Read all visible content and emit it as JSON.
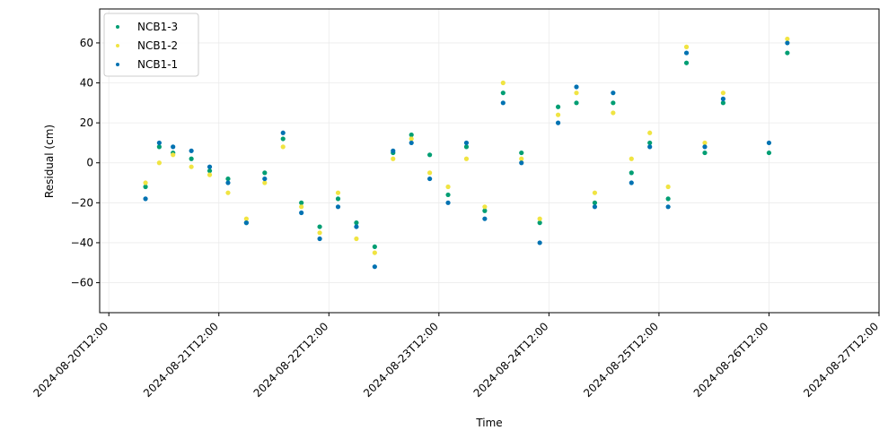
{
  "chart_data": {
    "type": "scatter",
    "title": "",
    "xlabel": "Time",
    "ylabel": "Residual (cm)",
    "x_range": [
      "2024-08-20T10:00",
      "2024-08-27T12:00"
    ],
    "ylim": [
      -75,
      77
    ],
    "x_ticks": [
      "2024-08-20T12:00",
      "2024-08-21T12:00",
      "2024-08-22T12:00",
      "2024-08-23T12:00",
      "2024-08-24T12:00",
      "2024-08-25T12:00",
      "2024-08-26T12:00",
      "2024-08-27T12:00"
    ],
    "y_ticks": [
      -60,
      -40,
      -20,
      0,
      20,
      40,
      60
    ],
    "grid": true,
    "legend_position": "top-left",
    "series": [
      {
        "name": "NCB1-3",
        "color": "#009E73",
        "points": [
          [
            "2024-08-20T20:00",
            -12
          ],
          [
            "2024-08-20T23:00",
            8
          ],
          [
            "2024-08-21T02:00",
            5
          ],
          [
            "2024-08-21T06:00",
            2
          ],
          [
            "2024-08-21T10:00",
            -4
          ],
          [
            "2024-08-21T14:00",
            -8
          ],
          [
            "2024-08-21T18:00",
            -30
          ],
          [
            "2024-08-21T22:00",
            -5
          ],
          [
            "2024-08-22T02:00",
            12
          ],
          [
            "2024-08-22T06:00",
            -20
          ],
          [
            "2024-08-22T10:00",
            -32
          ],
          [
            "2024-08-22T14:00",
            -18
          ],
          [
            "2024-08-22T18:00",
            -30
          ],
          [
            "2024-08-22T22:00",
            -42
          ],
          [
            "2024-08-23T02:00",
            5
          ],
          [
            "2024-08-23T06:00",
            14
          ],
          [
            "2024-08-23T10:00",
            4
          ],
          [
            "2024-08-23T14:00",
            -16
          ],
          [
            "2024-08-23T18:00",
            8
          ],
          [
            "2024-08-23T22:00",
            -24
          ],
          [
            "2024-08-24T02:00",
            35
          ],
          [
            "2024-08-24T06:00",
            5
          ],
          [
            "2024-08-24T10:00",
            -30
          ],
          [
            "2024-08-24T14:00",
            28
          ],
          [
            "2024-08-24T18:00",
            30
          ],
          [
            "2024-08-24T22:00",
            -20
          ],
          [
            "2024-08-25T02:00",
            30
          ],
          [
            "2024-08-25T06:00",
            -5
          ],
          [
            "2024-08-25T10:00",
            10
          ],
          [
            "2024-08-25T14:00",
            -18
          ],
          [
            "2024-08-25T18:00",
            50
          ],
          [
            "2024-08-25T22:00",
            5
          ],
          [
            "2024-08-26T02:00",
            30
          ],
          [
            "2024-08-26T12:00",
            5
          ],
          [
            "2024-08-26T16:00",
            55
          ]
        ]
      },
      {
        "name": "NCB1-2",
        "color": "#F0E442",
        "points": [
          [
            "2024-08-20T20:00",
            -10
          ],
          [
            "2024-08-20T23:00",
            0
          ],
          [
            "2024-08-21T02:00",
            4
          ],
          [
            "2024-08-21T06:00",
            -2
          ],
          [
            "2024-08-21T10:00",
            -6
          ],
          [
            "2024-08-21T14:00",
            -15
          ],
          [
            "2024-08-21T18:00",
            -28
          ],
          [
            "2024-08-21T22:00",
            -10
          ],
          [
            "2024-08-22T02:00",
            8
          ],
          [
            "2024-08-22T06:00",
            -22
          ],
          [
            "2024-08-22T10:00",
            -35
          ],
          [
            "2024-08-22T14:00",
            -15
          ],
          [
            "2024-08-22T18:00",
            -38
          ],
          [
            "2024-08-22T22:00",
            -45
          ],
          [
            "2024-08-23T02:00",
            2
          ],
          [
            "2024-08-23T06:00",
            12
          ],
          [
            "2024-08-23T10:00",
            -5
          ],
          [
            "2024-08-23T14:00",
            -12
          ],
          [
            "2024-08-23T18:00",
            2
          ],
          [
            "2024-08-23T22:00",
            -22
          ],
          [
            "2024-08-24T02:00",
            40
          ],
          [
            "2024-08-24T06:00",
            2
          ],
          [
            "2024-08-24T10:00",
            -28
          ],
          [
            "2024-08-24T14:00",
            24
          ],
          [
            "2024-08-24T18:00",
            35
          ],
          [
            "2024-08-24T22:00",
            -15
          ],
          [
            "2024-08-25T02:00",
            25
          ],
          [
            "2024-08-25T06:00",
            2
          ],
          [
            "2024-08-25T10:00",
            15
          ],
          [
            "2024-08-25T14:00",
            -12
          ],
          [
            "2024-08-25T18:00",
            58
          ],
          [
            "2024-08-25T22:00",
            10
          ],
          [
            "2024-08-26T02:00",
            35
          ],
          [
            "2024-08-26T16:00",
            62
          ]
        ]
      },
      {
        "name": "NCB1-1",
        "color": "#0072B2",
        "points": [
          [
            "2024-08-20T20:00",
            -18
          ],
          [
            "2024-08-20T23:00",
            10
          ],
          [
            "2024-08-21T02:00",
            8
          ],
          [
            "2024-08-21T06:00",
            6
          ],
          [
            "2024-08-21T10:00",
            -2
          ],
          [
            "2024-08-21T14:00",
            -10
          ],
          [
            "2024-08-21T18:00",
            -30
          ],
          [
            "2024-08-21T22:00",
            -8
          ],
          [
            "2024-08-22T02:00",
            15
          ],
          [
            "2024-08-22T06:00",
            -25
          ],
          [
            "2024-08-22T10:00",
            -38
          ],
          [
            "2024-08-22T14:00",
            -22
          ],
          [
            "2024-08-22T18:00",
            -32
          ],
          [
            "2024-08-22T22:00",
            -52
          ],
          [
            "2024-08-23T02:00",
            6
          ],
          [
            "2024-08-23T06:00",
            10
          ],
          [
            "2024-08-23T10:00",
            -8
          ],
          [
            "2024-08-23T14:00",
            -20
          ],
          [
            "2024-08-23T18:00",
            10
          ],
          [
            "2024-08-23T22:00",
            -28
          ],
          [
            "2024-08-24T02:00",
            30
          ],
          [
            "2024-08-24T06:00",
            0
          ],
          [
            "2024-08-24T10:00",
            -40
          ],
          [
            "2024-08-24T14:00",
            20
          ],
          [
            "2024-08-24T18:00",
            38
          ],
          [
            "2024-08-24T22:00",
            -22
          ],
          [
            "2024-08-25T02:00",
            35
          ],
          [
            "2024-08-25T06:00",
            -10
          ],
          [
            "2024-08-25T10:00",
            8
          ],
          [
            "2024-08-25T14:00",
            -22
          ],
          [
            "2024-08-25T18:00",
            55
          ],
          [
            "2024-08-25T22:00",
            8
          ],
          [
            "2024-08-26T02:00",
            32
          ],
          [
            "2024-08-26T12:00",
            10
          ],
          [
            "2024-08-26T16:00",
            60
          ]
        ]
      }
    ]
  }
}
